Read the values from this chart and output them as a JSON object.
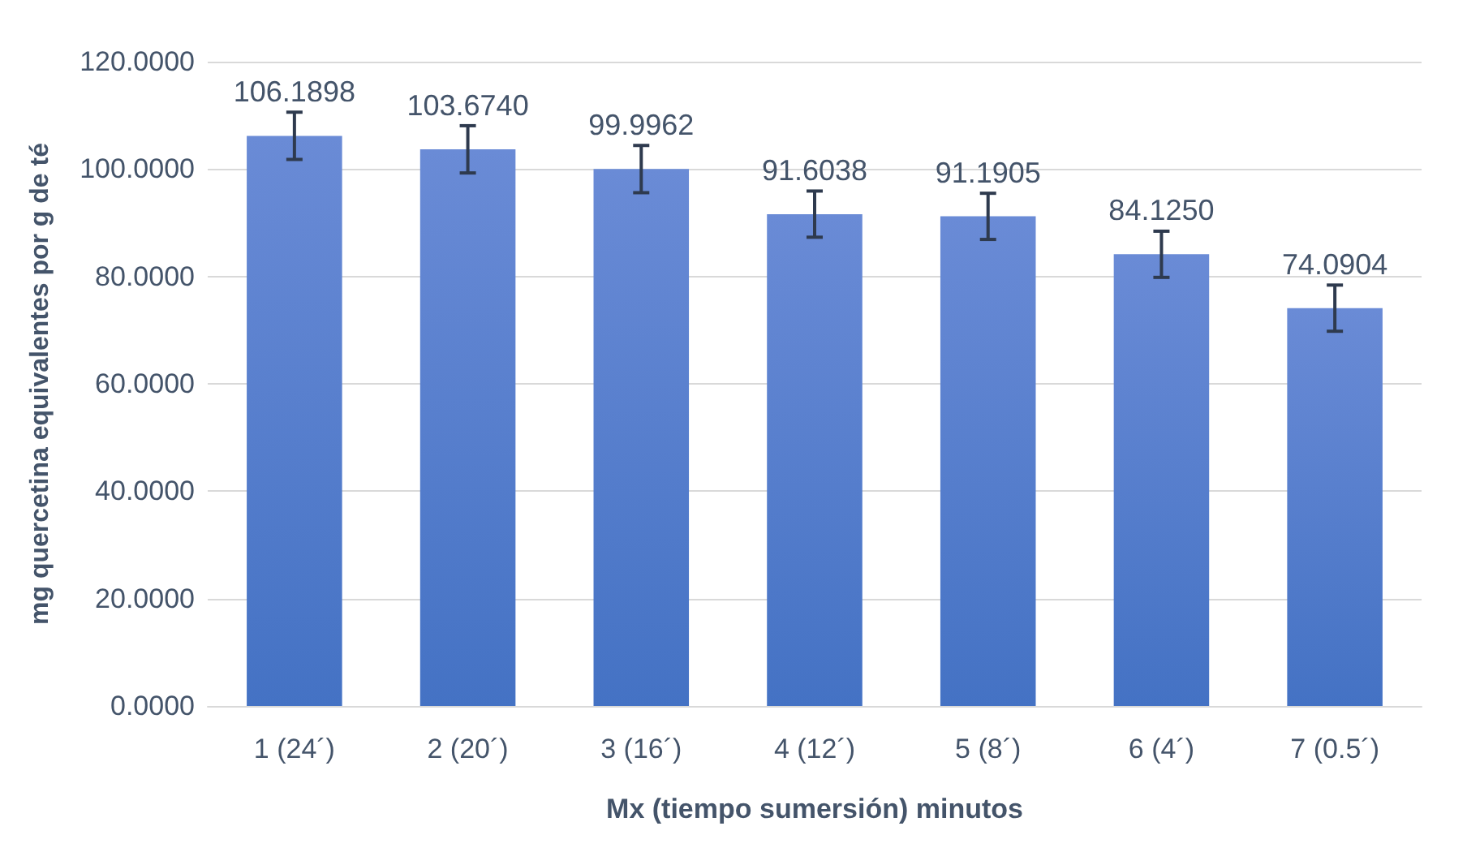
{
  "chart_data": {
    "type": "bar",
    "xlabel": "Mx (tiempo sumersión) minutos",
    "ylabel": "mg quercetina equivalentes por g de té",
    "categories": [
      "1 (24´)",
      "2 (20´)",
      "3 (16´)",
      "4 (12´)",
      "5 (8´)",
      "6 (4´)",
      "7 (0.5´)"
    ],
    "values": [
      106.1898,
      103.674,
      99.9962,
      91.6038,
      91.1905,
      84.125,
      74.0904
    ],
    "value_labels": [
      "106.1898",
      "103.6740",
      "99.9962",
      "91.6038",
      "91.1905",
      "84.1250",
      "74.0904"
    ],
    "errors": [
      4.4,
      4.4,
      4.4,
      4.3,
      4.3,
      4.3,
      4.3
    ],
    "color": "#4472c4",
    "ylim": [
      0,
      120
    ],
    "yticks": [
      {
        "value": 0,
        "label": "0.0000"
      },
      {
        "value": 20,
        "label": "20.0000"
      },
      {
        "value": 40,
        "label": "40.0000"
      },
      {
        "value": 60,
        "label": "60.0000"
      },
      {
        "value": 80,
        "label": "80.0000"
      },
      {
        "value": 100,
        "label": "100.0000"
      },
      {
        "value": 120,
        "label": "120.0000"
      }
    ],
    "grid": "y"
  }
}
